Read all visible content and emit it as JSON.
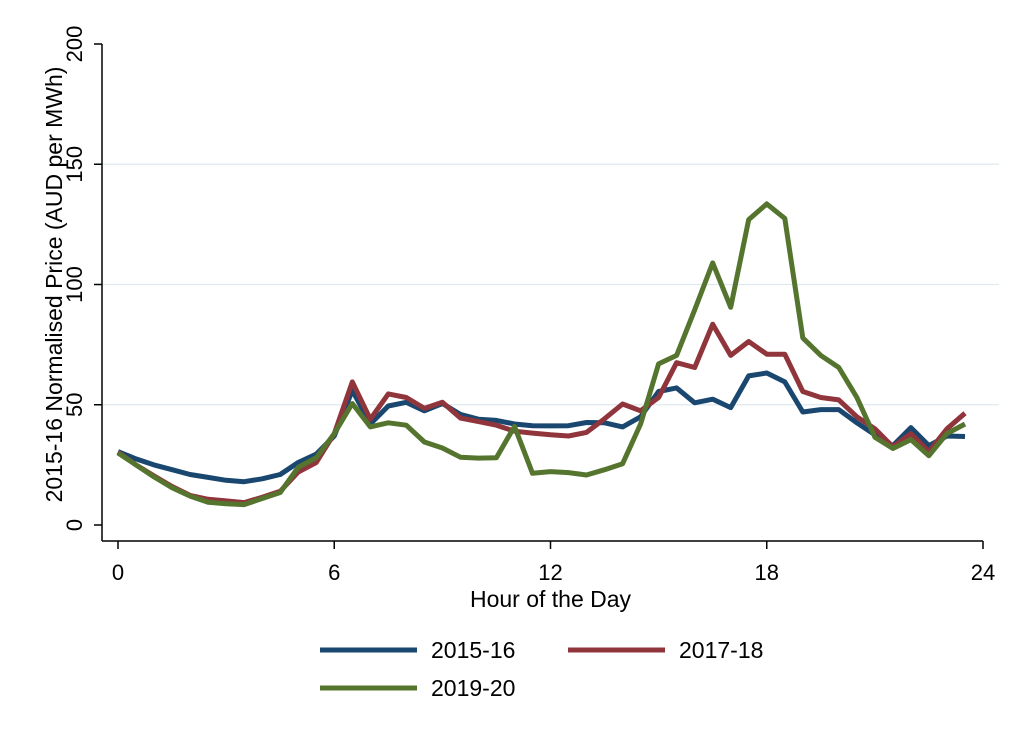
{
  "chart_data": {
    "type": "line",
    "title": "",
    "xlabel": "Hour of the Day",
    "ylabel": "2015-16 Normalised Price (AUD per MWh)",
    "xlim": [
      0,
      24
    ],
    "ylim": [
      0,
      200
    ],
    "xticks": [
      0,
      6,
      12,
      18,
      24
    ],
    "yticks": [
      0,
      50,
      100,
      150,
      200
    ],
    "xtick_labels": [
      "0",
      "6",
      "12",
      "18",
      "24"
    ],
    "ytick_labels": [
      "0",
      "50",
      "100",
      "150",
      "200"
    ],
    "grid": "horizontal",
    "legend_position": "bottom",
    "x": [
      0,
      0.5,
      1,
      1.5,
      2,
      2.5,
      3,
      3.5,
      4,
      4.5,
      5,
      5.5,
      6,
      6.5,
      7,
      7.5,
      8,
      8.5,
      9,
      9.5,
      10,
      10.5,
      11,
      11.5,
      12,
      12.5,
      13,
      13.5,
      14,
      14.5,
      15,
      15.5,
      16,
      16.5,
      17,
      17.5,
      18,
      18.5,
      19,
      19.5,
      20,
      20.5,
      21,
      21.5,
      22,
      22.5,
      23,
      23.5
    ],
    "series": [
      {
        "name": "2015-16",
        "color": "#1a476f",
        "values": [
          30.5,
          27.5,
          25,
          23,
          21,
          19.8,
          18.6,
          18,
          19.2,
          21,
          26,
          29.5,
          37,
          56,
          42,
          49.5,
          51,
          47.5,
          50.5,
          46,
          44,
          43.5,
          42,
          41.3,
          41.2,
          41.3,
          42.6,
          42.5,
          40.8,
          45,
          55.5,
          57,
          50.8,
          52.3,
          48.8,
          62,
          63.2,
          59.5,
          47,
          48,
          48,
          42.5,
          37.5,
          33,
          40.5,
          33,
          37,
          36.8
        ]
      },
      {
        "name": "2017-18",
        "color": "#90353b",
        "values": [
          30.3,
          25,
          20.4,
          16,
          12.3,
          10.7,
          10,
          9.3,
          11.5,
          14,
          22,
          26,
          38,
          59.5,
          44,
          54.5,
          53,
          48.5,
          51,
          44.5,
          43,
          41.5,
          39,
          38.2,
          37.5,
          37,
          38.5,
          44.2,
          50.3,
          47.5,
          53,
          67.5,
          65.5,
          83.5,
          70.5,
          76.3,
          71,
          71,
          55.5,
          53,
          52,
          45,
          40,
          32.5,
          38,
          30.5,
          40,
          46.5
        ]
      },
      {
        "name": "2019-20",
        "color": "#55752f",
        "values": [
          30,
          25,
          20,
          15.5,
          12,
          9.5,
          8.8,
          8.5,
          11,
          13.5,
          24,
          28,
          38,
          50.5,
          40.8,
          42.5,
          41.5,
          34.5,
          32,
          28.2,
          27.8,
          28,
          41,
          21.5,
          22.2,
          21.8,
          20.8,
          23,
          25.5,
          42,
          67,
          70.5,
          89.5,
          109,
          90.5,
          127,
          133.5,
          127.5,
          77.8,
          70.5,
          65.5,
          53,
          36.5,
          31.8,
          35.5,
          28.8,
          38,
          42
        ]
      }
    ]
  }
}
